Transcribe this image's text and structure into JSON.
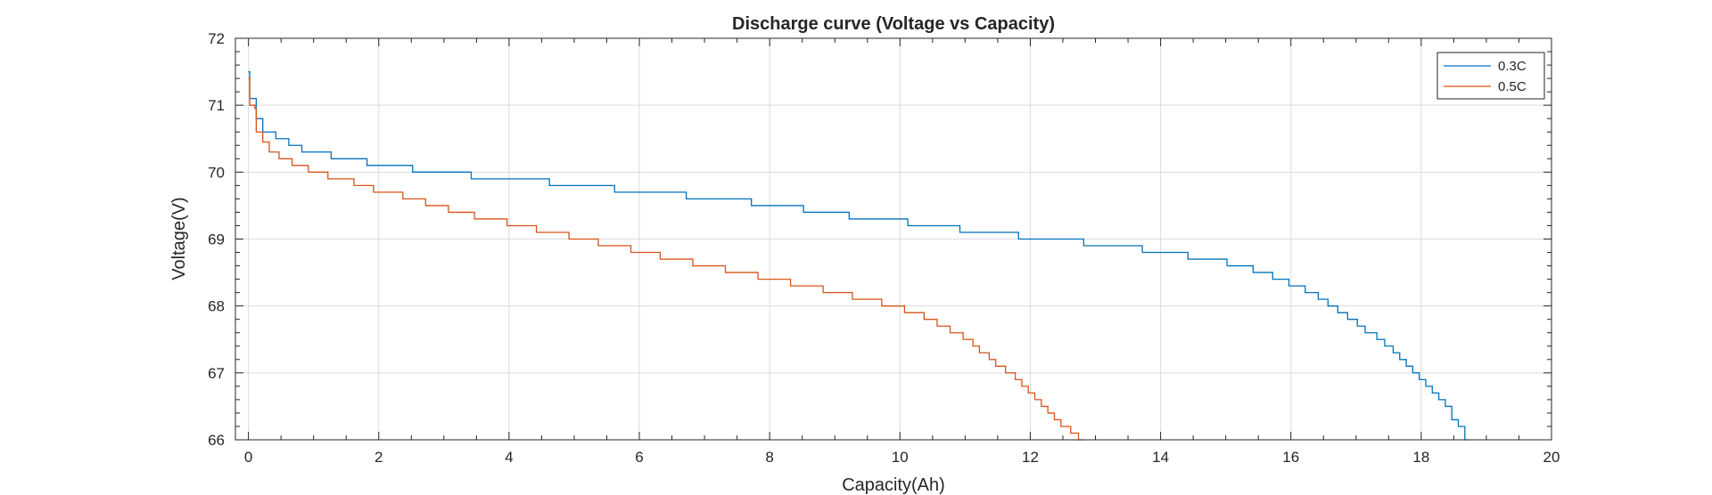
{
  "chart_data": {
    "type": "line",
    "title": "Discharge curve (Voltage vs Capacity)",
    "xlabel": "Capacity(Ah)",
    "ylabel": "Voltage(V)",
    "xlim": [
      -0.2,
      20
    ],
    "ylim": [
      66,
      72
    ],
    "xticks": [
      0,
      2,
      4,
      6,
      8,
      10,
      12,
      14,
      16,
      18,
      20
    ],
    "yticks": [
      66,
      67,
      68,
      69,
      70,
      71,
      72
    ],
    "grid": true,
    "minor_ticks": true,
    "legend_position": "top-right",
    "series": [
      {
        "name": "0.3C",
        "color": "#0072BD",
        "step": true,
        "points": [
          [
            0,
            71.5
          ],
          [
            0.02,
            71.1
          ],
          [
            0.1,
            71.1
          ],
          [
            0.12,
            70.8
          ],
          [
            0.2,
            70.8
          ],
          [
            0.22,
            70.6
          ],
          [
            0.4,
            70.6
          ],
          [
            0.42,
            70.5
          ],
          [
            0.6,
            70.5
          ],
          [
            0.62,
            70.4
          ],
          [
            0.8,
            70.4
          ],
          [
            0.82,
            70.3
          ],
          [
            1.25,
            70.3
          ],
          [
            1.27,
            70.2
          ],
          [
            1.8,
            70.2
          ],
          [
            1.82,
            70.1
          ],
          [
            2.5,
            70.1
          ],
          [
            2.52,
            70.0
          ],
          [
            3.4,
            70.0
          ],
          [
            3.42,
            69.9
          ],
          [
            4.6,
            69.9
          ],
          [
            4.62,
            69.8
          ],
          [
            5.6,
            69.8
          ],
          [
            5.62,
            69.7
          ],
          [
            6.7,
            69.7
          ],
          [
            6.72,
            69.6
          ],
          [
            7.7,
            69.6
          ],
          [
            7.72,
            69.5
          ],
          [
            8.5,
            69.5
          ],
          [
            8.52,
            69.4
          ],
          [
            9.2,
            69.4
          ],
          [
            9.22,
            69.3
          ],
          [
            10.1,
            69.3
          ],
          [
            10.12,
            69.2
          ],
          [
            10.9,
            69.2
          ],
          [
            10.92,
            69.1
          ],
          [
            11.8,
            69.1
          ],
          [
            11.82,
            69.0
          ],
          [
            12.8,
            69.0
          ],
          [
            12.82,
            68.9
          ],
          [
            13.7,
            68.9
          ],
          [
            13.72,
            68.8
          ],
          [
            14.4,
            68.8
          ],
          [
            14.42,
            68.7
          ],
          [
            15.0,
            68.7
          ],
          [
            15.02,
            68.6
          ],
          [
            15.4,
            68.6
          ],
          [
            15.42,
            68.5
          ],
          [
            15.7,
            68.5
          ],
          [
            15.72,
            68.4
          ],
          [
            15.95,
            68.4
          ],
          [
            15.97,
            68.3
          ],
          [
            16.2,
            68.3
          ],
          [
            16.22,
            68.2
          ],
          [
            16.4,
            68.2
          ],
          [
            16.42,
            68.1
          ],
          [
            16.55,
            68.1
          ],
          [
            16.57,
            68.0
          ],
          [
            16.7,
            68.0
          ],
          [
            16.72,
            67.9
          ],
          [
            16.85,
            67.9
          ],
          [
            16.87,
            67.8
          ],
          [
            17.0,
            67.8
          ],
          [
            17.02,
            67.7
          ],
          [
            17.12,
            67.7
          ],
          [
            17.14,
            67.6
          ],
          [
            17.3,
            67.6
          ],
          [
            17.32,
            67.5
          ],
          [
            17.42,
            67.5
          ],
          [
            17.44,
            67.4
          ],
          [
            17.55,
            67.4
          ],
          [
            17.57,
            67.3
          ],
          [
            17.65,
            67.3
          ],
          [
            17.67,
            67.2
          ],
          [
            17.75,
            67.2
          ],
          [
            17.77,
            67.1
          ],
          [
            17.85,
            67.1
          ],
          [
            17.87,
            67.0
          ],
          [
            17.95,
            67.0
          ],
          [
            17.97,
            66.9
          ],
          [
            18.05,
            66.9
          ],
          [
            18.07,
            66.8
          ],
          [
            18.15,
            66.8
          ],
          [
            18.17,
            66.7
          ],
          [
            18.25,
            66.7
          ],
          [
            18.27,
            66.6
          ],
          [
            18.35,
            66.6
          ],
          [
            18.37,
            66.5
          ],
          [
            18.45,
            66.5
          ],
          [
            18.47,
            66.3
          ],
          [
            18.55,
            66.3
          ],
          [
            18.57,
            66.2
          ],
          [
            18.65,
            66.2
          ],
          [
            18.67,
            66.0
          ],
          [
            18.72,
            66.0
          ]
        ]
      },
      {
        "name": "0.5C",
        "color": "#D95319",
        "step": true,
        "points": [
          [
            0,
            71.4
          ],
          [
            0.02,
            71.0
          ],
          [
            0.1,
            70.95
          ],
          [
            0.12,
            70.6
          ],
          [
            0.2,
            70.6
          ],
          [
            0.22,
            70.45
          ],
          [
            0.3,
            70.45
          ],
          [
            0.32,
            70.3
          ],
          [
            0.45,
            70.3
          ],
          [
            0.47,
            70.2
          ],
          [
            0.65,
            70.2
          ],
          [
            0.67,
            70.1
          ],
          [
            0.9,
            70.1
          ],
          [
            0.92,
            70.0
          ],
          [
            1.2,
            70.0
          ],
          [
            1.22,
            69.9
          ],
          [
            1.6,
            69.9
          ],
          [
            1.62,
            69.8
          ],
          [
            1.9,
            69.8
          ],
          [
            1.92,
            69.7
          ],
          [
            2.35,
            69.7
          ],
          [
            2.37,
            69.6
          ],
          [
            2.7,
            69.6
          ],
          [
            2.72,
            69.5
          ],
          [
            3.05,
            69.5
          ],
          [
            3.07,
            69.4
          ],
          [
            3.45,
            69.4
          ],
          [
            3.47,
            69.3
          ],
          [
            3.95,
            69.3
          ],
          [
            3.97,
            69.2
          ],
          [
            4.4,
            69.2
          ],
          [
            4.42,
            69.1
          ],
          [
            4.9,
            69.1
          ],
          [
            4.92,
            69.0
          ],
          [
            5.35,
            69.0
          ],
          [
            5.37,
            68.9
          ],
          [
            5.85,
            68.9
          ],
          [
            5.87,
            68.8
          ],
          [
            6.3,
            68.8
          ],
          [
            6.32,
            68.7
          ],
          [
            6.8,
            68.7
          ],
          [
            6.82,
            68.6
          ],
          [
            7.3,
            68.6
          ],
          [
            7.32,
            68.5
          ],
          [
            7.8,
            68.5
          ],
          [
            7.82,
            68.4
          ],
          [
            8.3,
            68.4
          ],
          [
            8.32,
            68.3
          ],
          [
            8.8,
            68.3
          ],
          [
            8.82,
            68.2
          ],
          [
            9.25,
            68.2
          ],
          [
            9.27,
            68.1
          ],
          [
            9.7,
            68.1
          ],
          [
            9.72,
            68.0
          ],
          [
            10.05,
            68.0
          ],
          [
            10.07,
            67.9
          ],
          [
            10.35,
            67.9
          ],
          [
            10.37,
            67.8
          ],
          [
            10.55,
            67.8
          ],
          [
            10.57,
            67.7
          ],
          [
            10.75,
            67.7
          ],
          [
            10.77,
            67.6
          ],
          [
            10.95,
            67.6
          ],
          [
            10.97,
            67.5
          ],
          [
            11.1,
            67.5
          ],
          [
            11.12,
            67.4
          ],
          [
            11.2,
            67.4
          ],
          [
            11.22,
            67.3
          ],
          [
            11.35,
            67.3
          ],
          [
            11.37,
            67.2
          ],
          [
            11.45,
            67.2
          ],
          [
            11.47,
            67.1
          ],
          [
            11.6,
            67.1
          ],
          [
            11.62,
            67.0
          ],
          [
            11.75,
            67.0
          ],
          [
            11.77,
            66.9
          ],
          [
            11.85,
            66.9
          ],
          [
            11.87,
            66.8
          ],
          [
            11.95,
            66.8
          ],
          [
            11.97,
            66.7
          ],
          [
            12.05,
            66.7
          ],
          [
            12.07,
            66.6
          ],
          [
            12.15,
            66.6
          ],
          [
            12.17,
            66.5
          ],
          [
            12.25,
            66.5
          ],
          [
            12.27,
            66.4
          ],
          [
            12.35,
            66.4
          ],
          [
            12.37,
            66.3
          ],
          [
            12.45,
            66.3
          ],
          [
            12.47,
            66.2
          ],
          [
            12.6,
            66.2
          ],
          [
            12.62,
            66.1
          ],
          [
            12.72,
            66.1
          ],
          [
            12.74,
            66.0
          ],
          [
            12.8,
            66.0
          ]
        ]
      }
    ]
  }
}
